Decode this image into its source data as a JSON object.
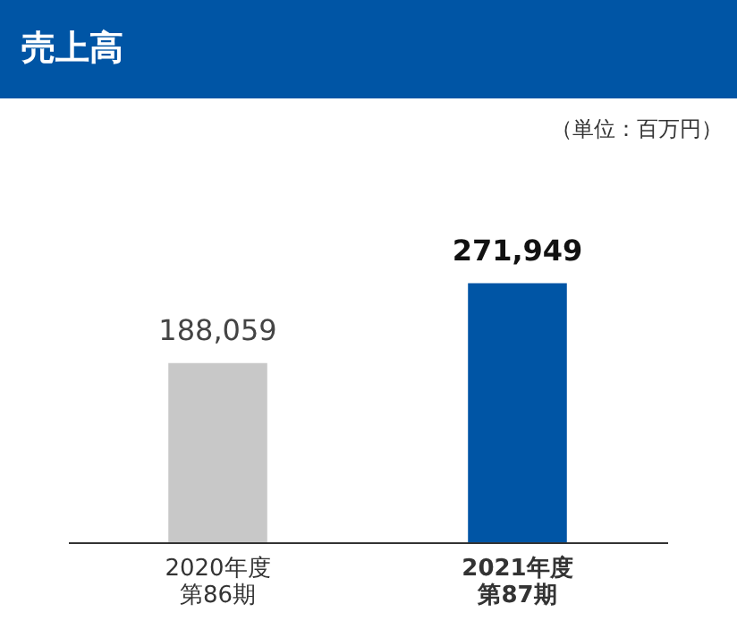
{
  "chart_data": {
    "type": "bar",
    "title": "売上高",
    "subtitle": "（単位：百万円）",
    "categories": [
      "2020年度第86期",
      "2021年度第87期"
    ],
    "values": [
      188059,
      271949
    ],
    "colors": [
      "#c8c8c8",
      "#0055a5"
    ],
    "value_labels": [
      "188,059",
      "271,949"
    ]
  }
}
